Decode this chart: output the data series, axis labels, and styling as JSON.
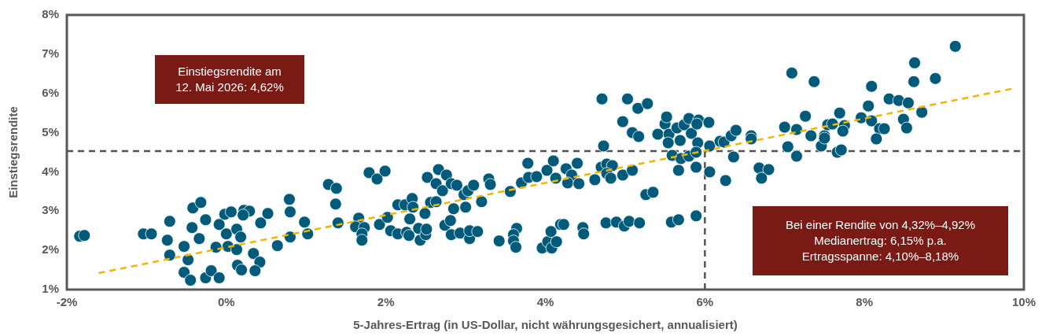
{
  "chart_data": {
    "type": "scatter",
    "xlabel": "5-Jahres-Ertrag (in US-Dollar, nicht währungsgesichert, annualisiert)",
    "ylabel": "Einstiegsrendite",
    "xlim": [
      -2,
      10
    ],
    "ylim": [
      1,
      8
    ],
    "xticks": [
      {
        "value": -2,
        "label": "-2%"
      },
      {
        "value": 0,
        "label": "0%"
      },
      {
        "value": 2,
        "label": "2%"
      },
      {
        "value": 4,
        "label": "4%"
      },
      {
        "value": 6,
        "label": "6%"
      },
      {
        "value": 8,
        "label": "8%"
      },
      {
        "value": 10,
        "label": "10%"
      }
    ],
    "yticks": [
      {
        "value": 1,
        "label": "1%"
      },
      {
        "value": 2,
        "label": "2%"
      },
      {
        "value": 3,
        "label": "3%"
      },
      {
        "value": 4,
        "label": "4%"
      },
      {
        "value": 5,
        "label": "5%"
      },
      {
        "value": 6,
        "label": "6%"
      },
      {
        "value": 7,
        "label": "7%"
      },
      {
        "value": 8,
        "label": "8%"
      }
    ],
    "grid": false,
    "legend": false,
    "marker": "circle",
    "series": [
      {
        "color": "#005a7a",
        "x": [
          -1.84,
          -1.78,
          -1.04,
          -0.94,
          -0.71,
          -0.74,
          -0.71,
          -0.53,
          -0.48,
          -0.53,
          -0.45,
          -0.42,
          -0.32,
          -0.43,
          -0.34,
          -0.26,
          -0.26,
          -0.19,
          -0.09,
          -0.09,
          -0.13,
          -0.02,
          0.06,
          0.0,
          0.13,
          0.18,
          0.02,
          0.13,
          0.14,
          0.19,
          0.22,
          0.29,
          0.21,
          0.43,
          0.52,
          0.34,
          0.42,
          0.36,
          0.64,
          0.79,
          0.8,
          0.8,
          0.98,
          1.02,
          1.28,
          1.38,
          1.37,
          1.4,
          1.66,
          1.62,
          1.73,
          1.7,
          1.7,
          1.79,
          1.89,
          1.99,
          1.92,
          2.02,
          2.06,
          2.15,
          2.26,
          2.29,
          2.15,
          2.24,
          2.33,
          2.34,
          2.3,
          2.41,
          2.43,
          2.5,
          2.51,
          2.49,
          2.52,
          2.66,
          2.56,
          2.63,
          2.63,
          2.71,
          2.76,
          2.82,
          2.89,
          2.85,
          2.74,
          2.81,
          2.82,
          2.93,
          3.05,
          3.05,
          3.15,
          3.0,
          2.98,
          3.03,
          3.1,
          3.2,
          3.29,
          3.31,
          3.42,
          3.64,
          3.6,
          3.6,
          3.63,
          3.56,
          3.7,
          3.79,
          3.78,
          3.89,
          4.02,
          4.1,
          4.13,
          3.96,
          4.03,
          4.07,
          4.08,
          4.14,
          4.19,
          4.26,
          4.33,
          4.28,
          4.42,
          4.4,
          4.62,
          4.7,
          4.77,
          4.84,
          4.77,
          4.82,
          4.97,
          5.09,
          4.73,
          4.71,
          5.03,
          5.16,
          5.28,
          4.97,
          5.09,
          5.17,
          5.26,
          5.35,
          5.41,
          5.5,
          5.52,
          5.55,
          5.54,
          5.65,
          5.69,
          5.74,
          5.8,
          5.83,
          5.92,
          5.9,
          6.05,
          5.91,
          6.06,
          5.59,
          5.7,
          5.8,
          5.89,
          5.67,
          5.89,
          6.06,
          6.19,
          6.24,
          6.33,
          6.39,
          6.36,
          6.26,
          6.58,
          6.58,
          6.68,
          6.8,
          6.71,
          4.23,
          4.47,
          4.48,
          4.76,
          4.89,
          4.99,
          5.05,
          5.18,
          5.58,
          5.67,
          5.89,
          7.09,
          7.37,
          7.0,
          7.15,
          7.26,
          7.04,
          7.15,
          7.33,
          7.46,
          7.5,
          7.5,
          7.54,
          7.6,
          7.69,
          7.75,
          7.73,
          7.66,
          7.71,
          7.96,
          8.09,
          8.05,
          8.09,
          8.19,
          8.25,
          8.15,
          8.31,
          8.43,
          8.55,
          8.49,
          8.53,
          8.72,
          8.63,
          8.62,
          8.89,
          9.14
        ],
        "values": [
          2.36,
          2.38,
          2.42,
          2.42,
          2.74,
          2.26,
          1.88,
          2.1,
          1.76,
          1.44,
          1.24,
          3.08,
          3.22,
          2.58,
          2.3,
          2.78,
          1.3,
          1.48,
          1.3,
          2.66,
          2.08,
          2.92,
          2.98,
          2.42,
          2.54,
          2.34,
          2.1,
          2.02,
          1.62,
          1.5,
          3.02,
          3.0,
          2.9,
          2.7,
          2.94,
          1.92,
          1.7,
          1.48,
          2.12,
          3.3,
          2.98,
          2.34,
          2.72,
          2.42,
          3.68,
          3.58,
          3.18,
          2.7,
          2.82,
          2.6,
          2.58,
          2.42,
          2.26,
          3.98,
          3.82,
          4.02,
          2.66,
          2.84,
          2.5,
          2.42,
          2.46,
          2.38,
          3.16,
          3.16,
          3.32,
          3.1,
          2.8,
          2.56,
          2.26,
          2.4,
          2.54,
          2.94,
          3.86,
          4.06,
          3.22,
          3.24,
          3.7,
          3.52,
          3.92,
          3.7,
          3.66,
          3.06,
          2.64,
          2.76,
          2.4,
          2.44,
          2.3,
          2.5,
          2.48,
          3.1,
          3.42,
          3.52,
          3.66,
          3.24,
          3.82,
          3.68,
          2.24,
          2.56,
          2.4,
          2.24,
          2.08,
          3.5,
          3.72,
          3.86,
          4.22,
          3.88,
          4.04,
          4.28,
          3.84,
          2.06,
          2.22,
          2.48,
          2.06,
          2.22,
          2.66,
          4.08,
          3.92,
          3.72,
          3.7,
          4.22,
          3.8,
          4.12,
          4.2,
          4.16,
          3.96,
          3.84,
          3.92,
          4.04,
          4.66,
          5.86,
          5.86,
          5.62,
          5.74,
          5.28,
          5.0,
          4.9,
          3.42,
          3.48,
          4.96,
          5.22,
          5.4,
          4.96,
          4.74,
          5.12,
          4.8,
          5.2,
          5.36,
          4.98,
          5.32,
          5.22,
          5.26,
          4.74,
          4.66,
          4.42,
          4.34,
          4.4,
          4.5,
          4.04,
          4.12,
          4.0,
          4.78,
          4.76,
          4.92,
          5.06,
          4.38,
          3.78,
          4.92,
          4.84,
          4.1,
          4.06,
          3.84,
          2.66,
          2.58,
          2.42,
          2.7,
          2.72,
          2.62,
          2.74,
          2.7,
          2.72,
          2.78,
          2.88,
          6.52,
          6.3,
          5.14,
          5.08,
          5.42,
          4.64,
          4.4,
          4.92,
          4.66,
          4.92,
          4.86,
          5.2,
          5.22,
          5.5,
          5.18,
          5.04,
          4.5,
          4.56,
          5.38,
          5.3,
          5.68,
          6.18,
          5.1,
          5.1,
          4.84,
          5.86,
          5.82,
          5.76,
          5.34,
          5.12,
          5.52,
          6.78,
          6.3,
          6.38,
          7.2
        ]
      },
      {
        "type": "line",
        "color": "#f5b400",
        "line_style": "dashed",
        "marker": "none",
        "x": [
          -1.6,
          9.85
        ],
        "values": [
          1.42,
          6.12
        ]
      }
    ],
    "ref_lines": [
      {
        "axis": "y",
        "value": 4.53,
        "color": "#555555",
        "line_style": "dashed"
      },
      {
        "axis": "x",
        "value": 6,
        "color": "#555555",
        "line_style": "dashed"
      }
    ],
    "annotations": [
      "Einstiegsrendite am\n12. Mai 2026: 4,62%",
      "Bei einer Rendite von 4,32%–4,92%\nMedianertrag: 6,15% p.a.\nErtragsspanne: 4,10%–8,18%"
    ]
  }
}
